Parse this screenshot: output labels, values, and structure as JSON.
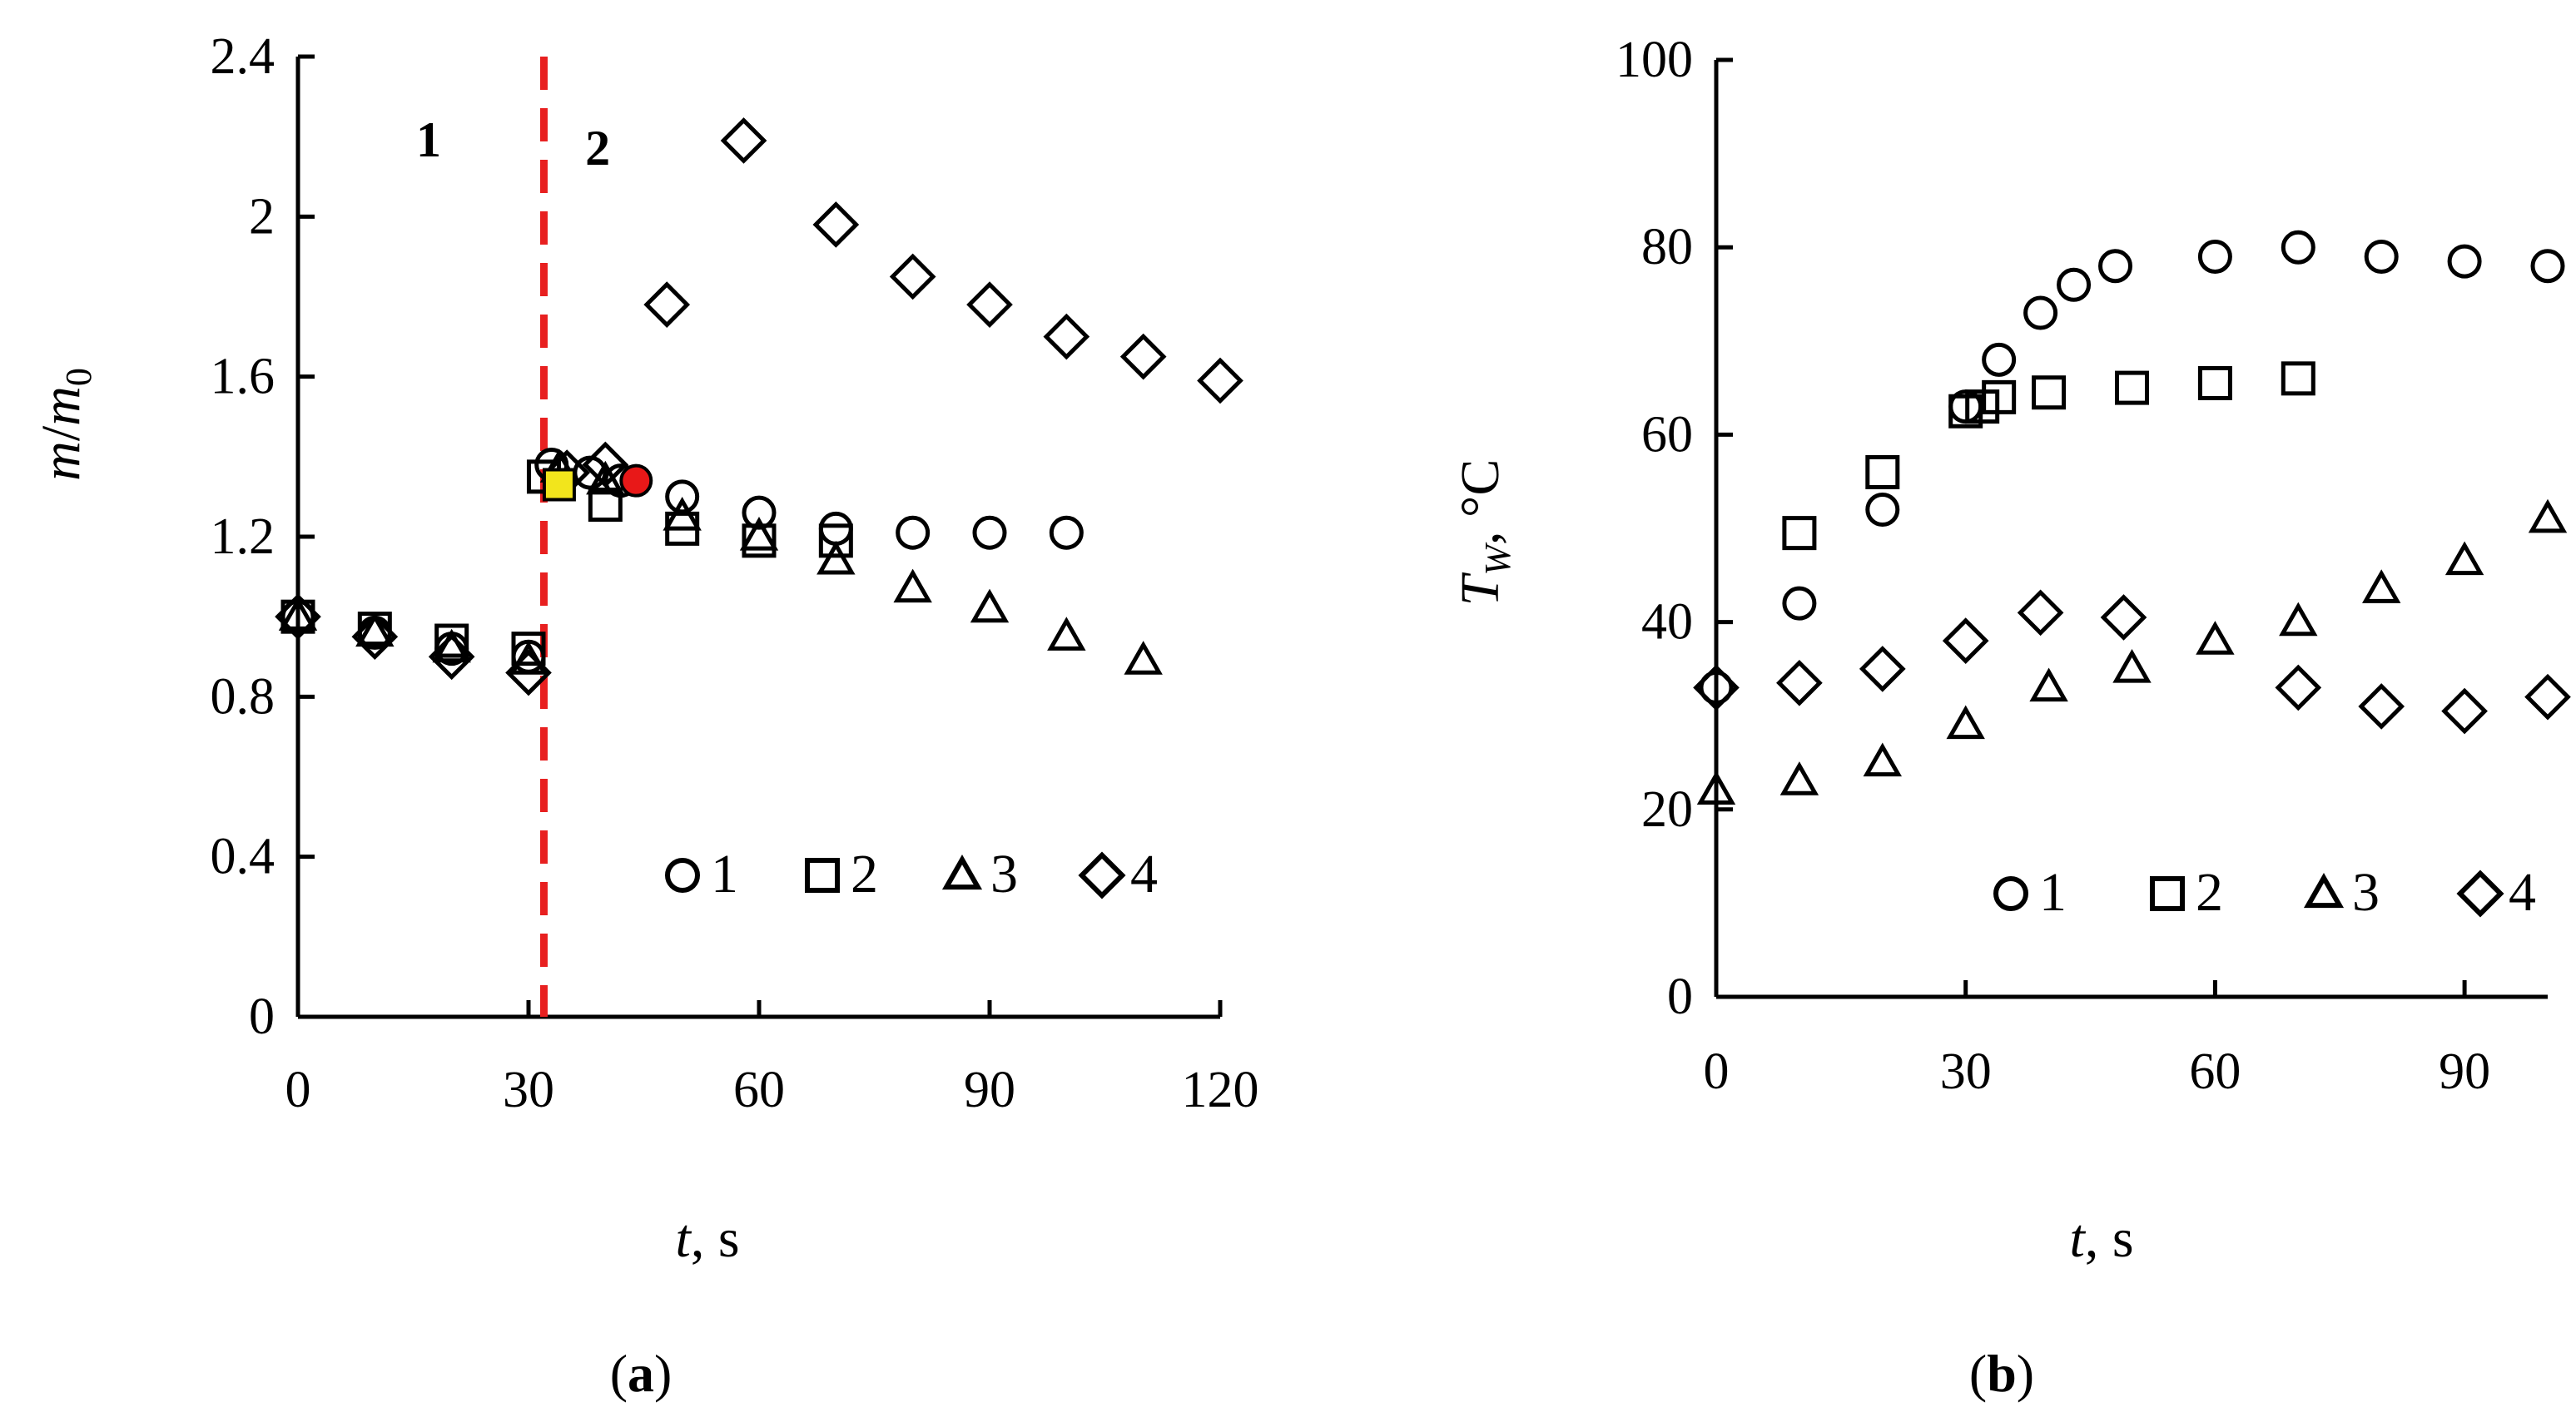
{
  "chart_data": [
    {
      "type": "scatter",
      "caption_open": "(",
      "caption_letter": "a",
      "caption_close": ")",
      "xlabel_italic": "t",
      "xlabel_rest": ", s",
      "ylabel_m": "m",
      "ylabel_slash": "/",
      "ylabel_m0": "m",
      "ylabel_sub": "0",
      "xlim": [
        0,
        120
      ],
      "ylim": [
        0,
        2.4
      ],
      "xticks": [
        0,
        30,
        60,
        90,
        120
      ],
      "yticks": [
        0,
        0.4,
        0.8,
        1.2,
        1.6,
        2,
        2.4
      ],
      "ytick_labels": [
        "0",
        "0.4",
        "0.8",
        "1.2",
        "1.6",
        "2",
        "2.4"
      ],
      "divider_x": 32,
      "divider_color": "#e82020",
      "region_labels": [
        {
          "text": "1",
          "x": 17,
          "y": 2.15
        },
        {
          "text": "2",
          "x": 39,
          "y": 2.13
        }
      ],
      "legend": [
        "1",
        "2",
        "3",
        "4"
      ],
      "legend_position": "bottom-right",
      "series": [
        {
          "name": "1",
          "marker": "circle",
          "x": [
            0,
            10,
            20,
            30,
            33,
            38,
            42,
            50,
            60,
            70,
            80,
            90,
            100
          ],
          "y": [
            1.0,
            0.96,
            0.92,
            0.9,
            1.38,
            1.36,
            1.34,
            1.3,
            1.26,
            1.22,
            1.21,
            1.21,
            1.21
          ]
        },
        {
          "name": "2",
          "marker": "square",
          "x": [
            0,
            10,
            20,
            30,
            32,
            40,
            50,
            60,
            70
          ],
          "y": [
            1.0,
            0.97,
            0.94,
            0.92,
            1.35,
            1.28,
            1.22,
            1.19,
            1.19
          ]
        },
        {
          "name": "3",
          "marker": "triangle",
          "x": [
            0,
            10,
            20,
            30,
            34,
            40,
            50,
            60,
            70,
            80,
            90,
            100,
            110
          ],
          "y": [
            1.0,
            0.96,
            0.92,
            0.89,
            1.37,
            1.34,
            1.25,
            1.2,
            1.14,
            1.07,
            1.02,
            0.95,
            0.89
          ]
        },
        {
          "name": "4",
          "marker": "diamond",
          "x": [
            0,
            10,
            20,
            30,
            35,
            40,
            48,
            58,
            70,
            80,
            90,
            100,
            110,
            120
          ],
          "y": [
            1.0,
            0.95,
            0.9,
            0.86,
            1.36,
            1.38,
            1.78,
            2.19,
            1.98,
            1.85,
            1.78,
            1.7,
            1.65,
            1.59
          ]
        }
      ],
      "highlights": [
        {
          "marker": "square",
          "x": 34,
          "y": 1.33,
          "color": "#f2e51c"
        },
        {
          "marker": "circle",
          "x": 44,
          "y": 1.34,
          "color": "#e81818"
        }
      ]
    },
    {
      "type": "scatter",
      "caption_open": "(",
      "caption_letter": "b",
      "caption_close": ")",
      "xlabel_italic": "t",
      "xlabel_rest": ", s",
      "ylabel_T": "T",
      "ylabel_sub": "W",
      "ylabel_rest": ", °C",
      "xlim": [
        0,
        100
      ],
      "ylim": [
        0,
        100
      ],
      "xticks": [
        0,
        30,
        60,
        90
      ],
      "yticks": [
        0,
        20,
        40,
        60,
        80,
        100
      ],
      "ytick_labels": [
        "0",
        "20",
        "40",
        "60",
        "80",
        "100"
      ],
      "legend": [
        "1",
        "2",
        "3",
        "4"
      ],
      "legend_position": "bottom-right",
      "series": [
        {
          "name": "1",
          "marker": "circle",
          "x": [
            0,
            10,
            20,
            30,
            34,
            39,
            43,
            48,
            60,
            70,
            80,
            90,
            100
          ],
          "y": [
            33,
            42,
            52,
            63,
            68,
            73,
            76,
            78,
            79,
            80,
            79,
            78.5,
            78
          ]
        },
        {
          "name": "2",
          "marker": "square",
          "x": [
            10,
            20,
            30,
            32,
            34,
            40,
            50,
            60,
            70
          ],
          "y": [
            49.5,
            56,
            62.5,
            63,
            64,
            64.5,
            65,
            65.5,
            66
          ]
        },
        {
          "name": "3",
          "marker": "triangle",
          "x": [
            0,
            10,
            20,
            30,
            40,
            50,
            60,
            70,
            80,
            90,
            100
          ],
          "y": [
            22,
            23,
            25,
            29,
            33,
            35,
            38,
            40,
            43.5,
            46.5,
            51
          ]
        },
        {
          "name": "4",
          "marker": "diamond",
          "x": [
            0,
            10,
            20,
            30,
            39,
            49,
            70,
            80,
            90,
            100
          ],
          "y": [
            33,
            33.5,
            35,
            38,
            41,
            40.5,
            33,
            31,
            30.5,
            32
          ]
        }
      ]
    }
  ]
}
